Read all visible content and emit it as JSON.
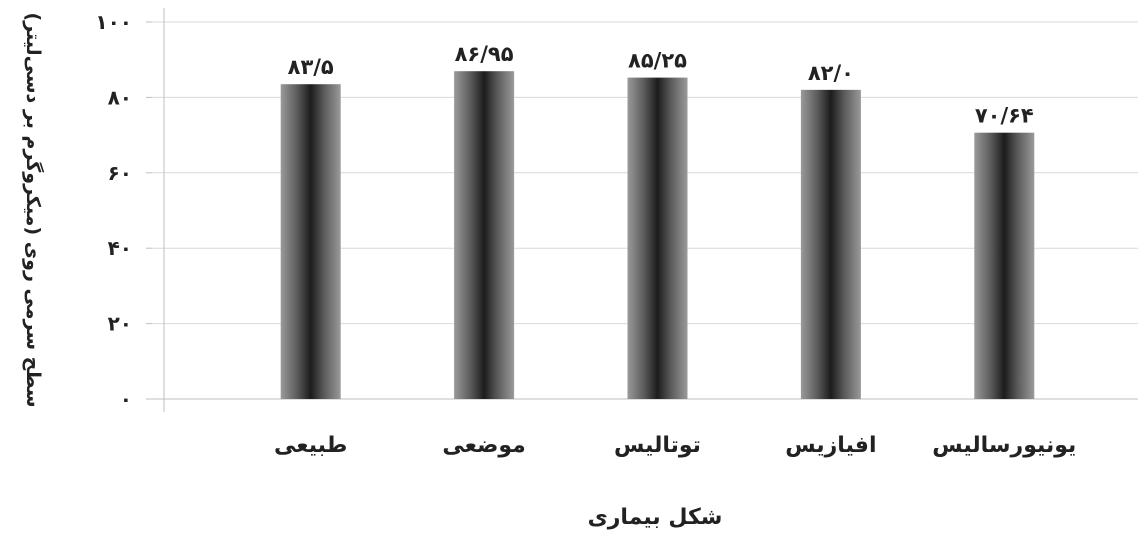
{
  "chart_data": {
    "type": "bar",
    "categories": [
      "طبیعی",
      "موضعی",
      "توتالیس",
      "افیازیس",
      "یونیورسالیس"
    ],
    "values": [
      83.5,
      86.95,
      85.25,
      82.0,
      70.64
    ],
    "value_labels": [
      "۸۳/۵",
      "۸۶/۹۵",
      "۸۵/۲۵",
      "۸۲/۰",
      "۷۰/۶۴"
    ],
    "ylim": [
      0,
      100
    ],
    "yticks": [
      0,
      20,
      40,
      60,
      80,
      100
    ],
    "ytick_labels": [
      "۰",
      "۲۰",
      "۴۰",
      "۶۰",
      "۸۰",
      "۱۰۰"
    ],
    "xlabel": "شکل بیماری",
    "ylabel": "سطح سرمی روی (میکروگرم بر دسی‌لیتر)",
    "grid": true,
    "colors": {
      "bar_edge": "#8a8a8a",
      "bar_center": "#1c1c1c",
      "grid": "#d9d9d9",
      "axis": "#bfbfbf",
      "text": "#222222"
    }
  }
}
